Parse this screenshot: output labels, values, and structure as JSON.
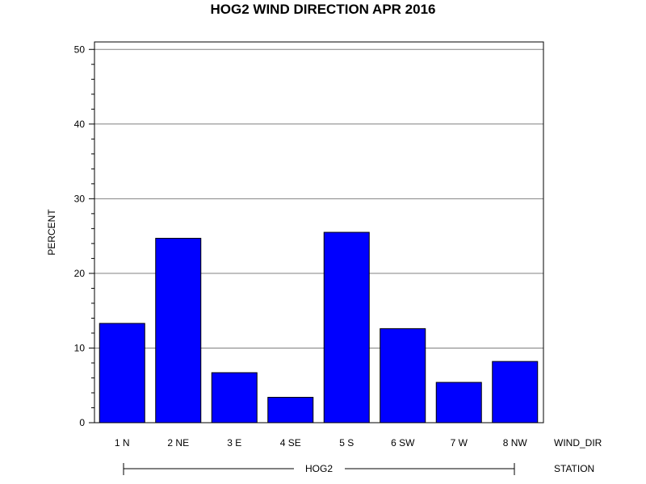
{
  "chart_data": {
    "type": "bar",
    "title": "HOG2 WIND DIRECTION APR 2016",
    "ylabel": "PERCENT",
    "xlabel": "WIND_DIR",
    "group_label": "STATION",
    "group_name": "HOG2",
    "categories": [
      "1 N",
      "2 NE",
      "3 E",
      "4 SE",
      "5 S",
      "6 SW",
      "7 W",
      "8 NW"
    ],
    "values": [
      13.3,
      24.7,
      6.7,
      3.4,
      25.5,
      12.6,
      5.4,
      8.2
    ],
    "ylim": [
      0,
      51
    ],
    "yticks": [
      0,
      10,
      20,
      30,
      40,
      50
    ],
    "grid": true,
    "bar_color": "#0000ff"
  }
}
